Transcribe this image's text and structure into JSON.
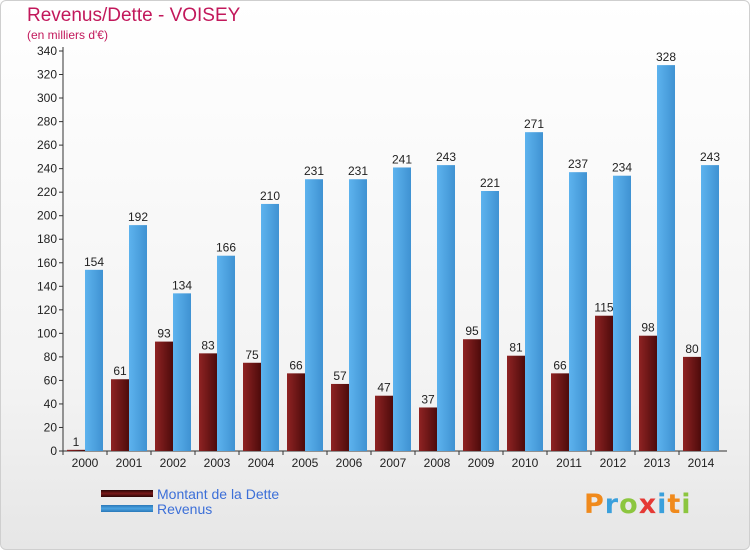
{
  "chart_data": {
    "type": "bar",
    "title": "Revenus/Dette - VOISEY",
    "subtitle": "(en milliers d'€)",
    "categories": [
      "2000",
      "2001",
      "2002",
      "2003",
      "2004",
      "2005",
      "2006",
      "2007",
      "2008",
      "2009",
      "2010",
      "2011",
      "2012",
      "2013",
      "2014"
    ],
    "series": [
      {
        "name": "Montant de la Dette",
        "color": "#7a1a1a",
        "values": [
          1,
          61,
          93,
          83,
          75,
          66,
          57,
          47,
          37,
          95,
          81,
          66,
          115,
          98,
          80
        ]
      },
      {
        "name": "Revenus",
        "color": "#4aa3e2",
        "values": [
          154,
          192,
          134,
          166,
          210,
          231,
          231,
          241,
          243,
          221,
          271,
          237,
          234,
          328,
          243
        ]
      }
    ],
    "ylim": [
      0,
      340
    ],
    "ytick_step": 20,
    "grid": false,
    "legend_position": "bottom-left",
    "title_color": "#c2185b",
    "legend_text_color": "#3c6fd8"
  },
  "brand": {
    "text": "Proxiti",
    "letters": [
      {
        "char": "P",
        "color": "#f08a1c"
      },
      {
        "char": "r",
        "color": "#3aa0dc"
      },
      {
        "char": "o",
        "color": "#8cc63f"
      },
      {
        "char": "x",
        "color": "#e53935"
      },
      {
        "char": "i",
        "color": "#3aa0dc"
      },
      {
        "char": "t",
        "color": "#f08a1c"
      },
      {
        "char": "i",
        "color": "#8cc63f"
      }
    ]
  }
}
